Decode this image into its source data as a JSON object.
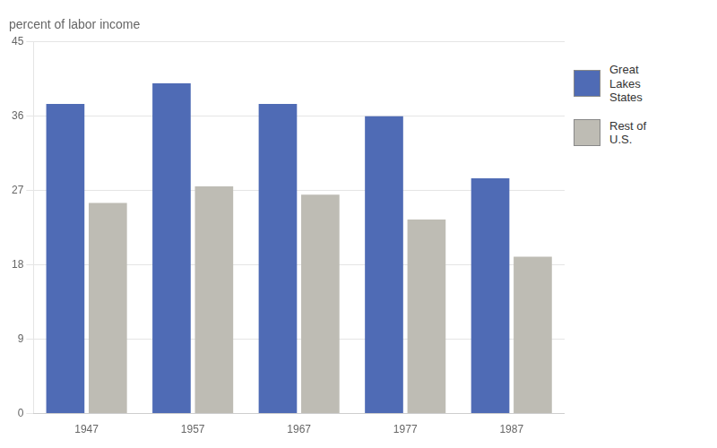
{
  "chart_data": {
    "type": "bar",
    "title": "percent of labor income",
    "categories": [
      "1947",
      "1957",
      "1967",
      "1977",
      "1987"
    ],
    "series": [
      {
        "name": "Great\nLakes\nStates",
        "color": "#4F6BB5",
        "values": [
          37.5,
          40.0,
          37.5,
          36.0,
          28.5
        ]
      },
      {
        "name": "Rest of\nU.S.",
        "color": "#BEBCB4",
        "values": [
          25.5,
          27.5,
          26.5,
          23.5,
          19.0
        ]
      }
    ],
    "ylim": [
      0,
      45
    ],
    "yticks": [
      0,
      9,
      18,
      27,
      36,
      45
    ],
    "grid": true,
    "legend": "right"
  }
}
